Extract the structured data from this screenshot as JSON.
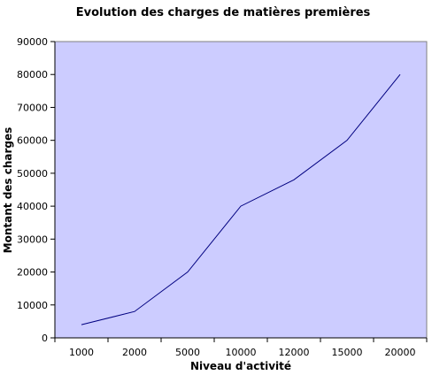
{
  "chart_data": {
    "type": "line",
    "title": "Evolution des charges de matières premières",
    "xlabel": "Niveau d'activité",
    "ylabel": "Montant des charges",
    "categories": [
      "1000",
      "2000",
      "5000",
      "10000",
      "12000",
      "15000",
      "20000"
    ],
    "series": [
      {
        "values": [
          4000,
          8000,
          20000,
          40000,
          48000,
          60000,
          80000
        ]
      }
    ],
    "ylim": [
      0,
      90000
    ],
    "yticks": [
      "0",
      "10000",
      "20000",
      "30000",
      "40000",
      "50000",
      "60000",
      "70000",
      "80000",
      "90000"
    ],
    "grid": false,
    "legend": "none",
    "colors": {
      "plot_bg": "#ccccff",
      "line": "#000080",
      "axis": "#000000",
      "page_bg": "#ffffff"
    }
  }
}
